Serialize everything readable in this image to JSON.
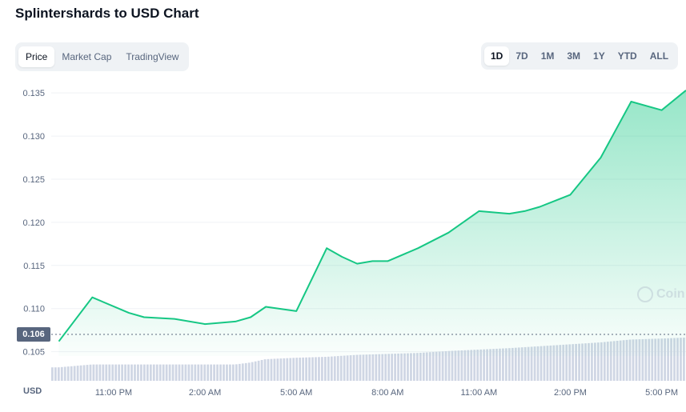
{
  "page": {
    "title": "Splintershards to USD Chart"
  },
  "tabs_left": [
    {
      "label": "Price",
      "active": true
    },
    {
      "label": "Market Cap",
      "active": false
    },
    {
      "label": "TradingView",
      "active": false
    }
  ],
  "tabs_right": [
    {
      "label": "1D",
      "active": true
    },
    {
      "label": "7D",
      "active": false
    },
    {
      "label": "1M",
      "active": false
    },
    {
      "label": "3M",
      "active": false
    },
    {
      "label": "1Y",
      "active": false
    },
    {
      "label": "YTD",
      "active": false
    },
    {
      "label": "ALL",
      "active": false
    }
  ],
  "current_price_label": "0.106",
  "currency_label": "USD",
  "watermark_text": "Coin",
  "colors": {
    "line": "#16c784",
    "area_top": "#16c784",
    "volume": "#cfd6e4",
    "grid": "#eff2f5"
  },
  "chart_data": {
    "type": "area",
    "y_ticks": [
      "0.135",
      "0.130",
      "0.125",
      "0.120",
      "0.115",
      "0.110",
      "0.105"
    ],
    "x_ticks": [
      "11:00 PM",
      "2:00 AM",
      "5:00 AM",
      "8:00 AM",
      "11:00 AM",
      "2:00 PM",
      "5:00 PM"
    ],
    "ylim": [
      0.1045,
      0.1365
    ],
    "x_hours": [
      21.2,
      22.3,
      23.5,
      24.0,
      25.0,
      26.0,
      27.0,
      27.5,
      28.0,
      29.0,
      30.0,
      30.5,
      31.0,
      31.5,
      32.0,
      33.0,
      34.0,
      35.0,
      36.0,
      36.5,
      37.0,
      37.5,
      38.0,
      39.0,
      40.0,
      41.0,
      41.8
    ],
    "price": [
      0.1062,
      0.1113,
      0.1095,
      0.109,
      0.1088,
      0.1082,
      0.1085,
      0.109,
      0.1102,
      0.1097,
      0.117,
      0.116,
      0.1152,
      0.1155,
      0.1155,
      0.117,
      0.1188,
      0.1213,
      0.121,
      0.1213,
      0.1218,
      0.1225,
      0.1232,
      0.1275,
      0.134,
      0.133,
      0.1353
    ],
    "series": [
      {
        "values": [
          0.1062,
          0.1113,
          0.1095,
          0.109,
          0.1088,
          0.1082,
          0.1085,
          0.109,
          0.1102,
          0.1097,
          0.117,
          0.116,
          0.1152,
          0.1155,
          0.1155,
          0.117,
          0.1188,
          0.1213,
          0.121,
          0.1213,
          0.1218,
          0.1225,
          0.1232,
          0.1275,
          0.134,
          0.133,
          0.1353
        ]
      }
    ],
    "volume_relative": [
      0.28,
      0.34,
      0.34,
      0.34,
      0.34,
      0.34,
      0.34,
      0.38,
      0.45,
      0.48,
      0.5,
      0.52,
      0.54,
      0.55,
      0.56,
      0.58,
      0.62,
      0.65,
      0.68,
      0.7,
      0.72,
      0.74,
      0.76,
      0.8,
      0.86,
      0.88,
      0.9
    ],
    "grid": true,
    "legend": "none"
  }
}
